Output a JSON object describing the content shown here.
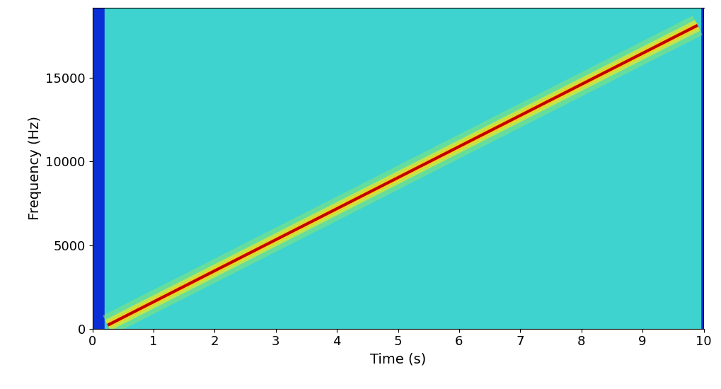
{
  "chart_data": {
    "type": "spectrogram",
    "x_label": "Time (s)",
    "y_label": "Frequency (Hz)",
    "xlim": [
      0,
      10
    ],
    "ylim": [
      0,
      19200
    ],
    "xticks": [
      0,
      1,
      2,
      3,
      4,
      5,
      6,
      7,
      8,
      9,
      10
    ],
    "yticks": [
      0,
      5000,
      10000,
      15000
    ],
    "signal_span": [
      0.2,
      9.95
    ],
    "x": [
      0.25,
      9.9
    ],
    "values": [
      210,
      18150
    ],
    "color": "#c00000"
  }
}
